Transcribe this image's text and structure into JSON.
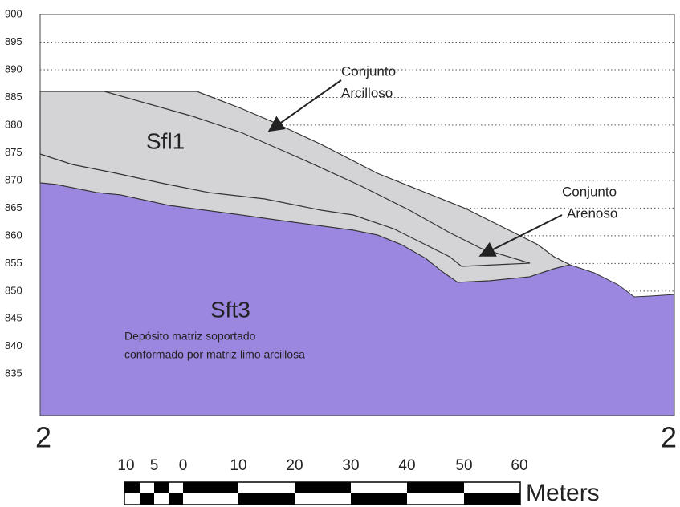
{
  "axis": {
    "ticks": [
      900,
      895,
      890,
      885,
      880,
      875,
      870,
      865,
      860,
      855,
      850,
      845,
      840,
      835
    ],
    "range": [
      827.5,
      900
    ]
  },
  "labels": {
    "unit_upper": "Sfl1",
    "unit_lower": "Sft3",
    "description": [
      "Depósito matriz soportado",
      "conformado por matriz limo arcillosa"
    ],
    "arcilloso": [
      "Conjunto",
      "Arcilloso"
    ],
    "arenoso": [
      "Conjunto",
      "Arenoso"
    ],
    "section_left": "2",
    "section_right": "2"
  },
  "scale_bar": {
    "ticks": [
      "10",
      "5",
      "0",
      "10",
      "20",
      "30",
      "40",
      "50",
      "60"
    ],
    "unit": "Meters"
  }
}
